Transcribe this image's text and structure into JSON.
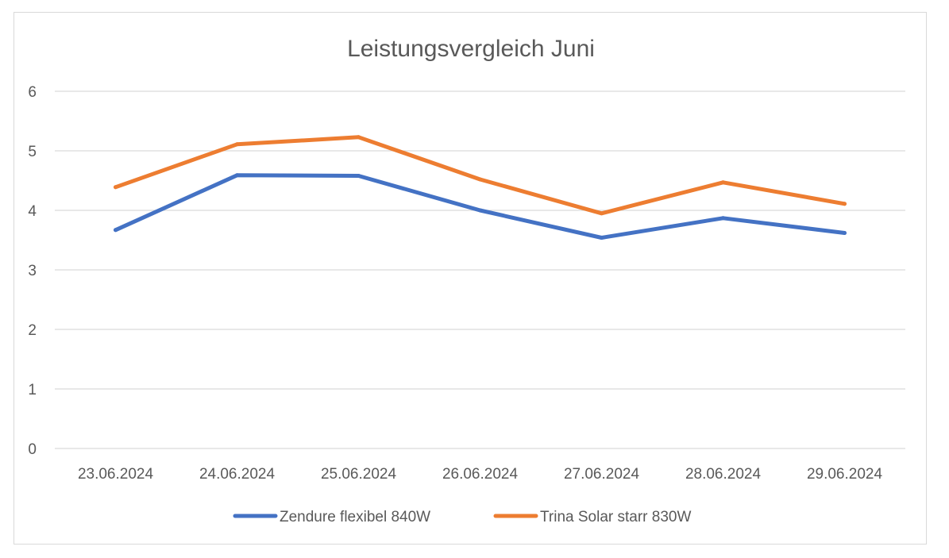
{
  "chart_data": {
    "type": "line",
    "title": "Leistungsvergleich Juni",
    "xlabel": "",
    "ylabel": "",
    "categories": [
      "23.06.2024",
      "24.06.2024",
      "25.06.2024",
      "26.06.2024",
      "27.06.2024",
      "28.06.2024",
      "29.06.2024"
    ],
    "y_ticks": [
      "0",
      "1",
      "2",
      "3",
      "4",
      "5",
      "6"
    ],
    "ylim": [
      0,
      6
    ],
    "grid": true,
    "legend_position": "bottom",
    "series": [
      {
        "name": "Zendure flexibel 840W",
        "color": "#4472c4",
        "values": [
          3.67,
          4.59,
          4.58,
          4.0,
          3.54,
          3.87,
          3.62
        ]
      },
      {
        "name": "Trina Solar starr 830W",
        "color": "#ed7d31",
        "values": [
          4.39,
          5.11,
          5.23,
          4.52,
          3.95,
          4.47,
          4.11
        ]
      }
    ]
  }
}
